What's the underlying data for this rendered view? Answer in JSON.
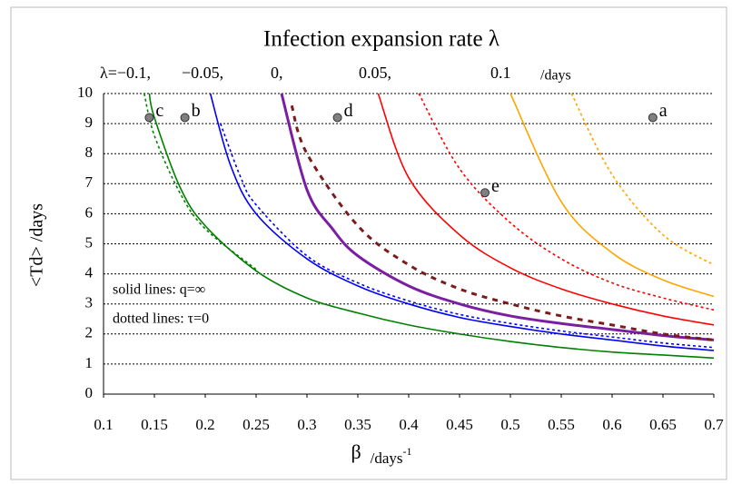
{
  "chart_data": {
    "type": "line",
    "title": "Infection expansion rate λ",
    "lambda_labels": [
      "λ=−0.1,",
      "−0.05,",
      "0,",
      "0.05,",
      "0.1"
    ],
    "lambda_unit": "/days",
    "xlabel": "β",
    "xlabel_unit": "/days",
    "xlabel_sup": "-1",
    "ylabel": "<Td> /days",
    "xlim": [
      0.1,
      0.7
    ],
    "ylim": [
      0,
      10
    ],
    "xticks": [
      0.1,
      0.15,
      0.2,
      0.25,
      0.3,
      0.35,
      0.4,
      0.45,
      0.5,
      0.55,
      0.6,
      0.65,
      0.7
    ],
    "yticks": [
      0,
      1,
      2,
      3,
      4,
      5,
      6,
      7,
      8,
      9,
      10
    ],
    "grid": true,
    "annotations": [
      "solid lines: q=∞",
      "dotted lines: τ=0"
    ],
    "series": [
      {
        "color": "#008000",
        "dash": false,
        "x": [
          0.145,
          0.15,
          0.175,
          0.2,
          0.25,
          0.3,
          0.35,
          0.4,
          0.45,
          0.5,
          0.55,
          0.6,
          0.65,
          0.7
        ],
        "values": [
          10,
          9.2,
          6.9,
          5.6,
          4.1,
          3.2,
          2.7,
          2.3,
          2.0,
          1.75,
          1.55,
          1.4,
          1.3,
          1.2
        ]
      },
      {
        "color": "#008000",
        "dash": true,
        "x": [
          0.14,
          0.15,
          0.175,
          0.2,
          0.25
        ],
        "values": [
          10,
          8.6,
          6.7,
          5.5,
          4.15
        ]
      },
      {
        "color": "#0000ff",
        "dash": false,
        "x": [
          0.205,
          0.225,
          0.25,
          0.3,
          0.35,
          0.4,
          0.45,
          0.5,
          0.55,
          0.6,
          0.65,
          0.7
        ],
        "values": [
          10,
          7.6,
          6.0,
          4.5,
          3.6,
          3.0,
          2.55,
          2.25,
          2.0,
          1.8,
          1.6,
          1.45
        ]
      },
      {
        "color": "#0000ff",
        "dash": true,
        "x": [
          0.215,
          0.235,
          0.25,
          0.3,
          0.35,
          0.4,
          0.45,
          0.5,
          0.55,
          0.6,
          0.65,
          0.7
        ],
        "values": [
          9,
          7.2,
          6.3,
          4.6,
          3.7,
          3.1,
          2.65,
          2.35,
          2.1,
          1.9,
          1.7,
          1.55
        ]
      },
      {
        "color": "#7b1fa2",
        "dash": false,
        "x": [
          0.275,
          0.3,
          0.325,
          0.35,
          0.4,
          0.45,
          0.5,
          0.55,
          0.6,
          0.65,
          0.7
        ],
        "values": [
          10,
          6.8,
          5.5,
          4.6,
          3.6,
          3.0,
          2.6,
          2.35,
          2.15,
          1.95,
          1.8
        ]
      },
      {
        "color": "#7b1c1c",
        "dash": true,
        "x": [
          0.285,
          0.3,
          0.35,
          0.4,
          0.45,
          0.5,
          0.55,
          0.6,
          0.65,
          0.7
        ],
        "values": [
          9.6,
          8.0,
          5.6,
          4.3,
          3.5,
          3.0,
          2.6,
          2.3,
          2.0,
          1.8
        ]
      },
      {
        "color": "#ff0000",
        "dash": false,
        "x": [
          0.37,
          0.4,
          0.45,
          0.5,
          0.55,
          0.6,
          0.65,
          0.7
        ],
        "values": [
          10,
          7.2,
          5.3,
          4.2,
          3.5,
          3.0,
          2.6,
          2.3
        ]
      },
      {
        "color": "#ff0000",
        "dash": true,
        "x": [
          0.41,
          0.45,
          0.5,
          0.55,
          0.6,
          0.65,
          0.7
        ],
        "values": [
          10,
          7.5,
          5.7,
          4.5,
          3.7,
          3.2,
          2.8
        ]
      },
      {
        "color": "#ffa500",
        "dash": false,
        "x": [
          0.5,
          0.55,
          0.6,
          0.65,
          0.7
        ],
        "values": [
          10,
          6.4,
          4.7,
          3.8,
          3.25
        ]
      },
      {
        "color": "#ffa500",
        "dash": true,
        "x": [
          0.56,
          0.6,
          0.65,
          0.7
        ],
        "values": [
          10,
          7.3,
          5.3,
          4.3
        ]
      }
    ],
    "points": {
      "labels": [
        "c",
        "b",
        "d",
        "e",
        "a"
      ],
      "x": [
        0.145,
        0.18,
        0.33,
        0.475,
        0.64
      ],
      "values": [
        9.2,
        9.2,
        9.2,
        6.7,
        9.2
      ],
      "color": "#808080"
    }
  }
}
